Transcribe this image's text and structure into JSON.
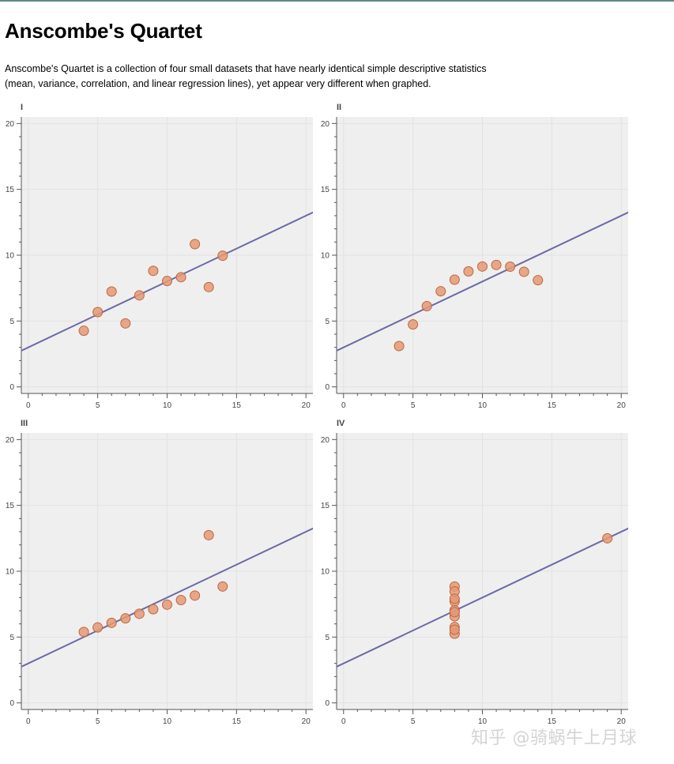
{
  "page": {
    "title": "Anscombe's Quartet",
    "description_line1": "Anscombe's Quartet is a collection of four small datasets that have nearly identical simple descriptive statistics",
    "description_line2": "(mean, variance, correlation, and linear regression lines), yet appear very different when graphed."
  },
  "colors": {
    "plot_background": "#efefef",
    "grid": "#e2e2e2",
    "point_fill": "#e39a76",
    "point_stroke": "#c2643d",
    "line": "#6a6aa6",
    "axis": "#555555"
  },
  "watermark": "知乎 @骑蜗牛上月球",
  "chart_data": [
    {
      "type": "scatter",
      "title": "I",
      "xlim": [
        -0.5,
        20.5
      ],
      "ylim": [
        -0.5,
        20.5
      ],
      "xticks": [
        0,
        5,
        10,
        15,
        20
      ],
      "yticks": [
        0,
        5,
        10,
        15,
        20
      ],
      "grid": true,
      "x": [
        10,
        8,
        13,
        9,
        11,
        14,
        6,
        4,
        12,
        7,
        5
      ],
      "y": [
        8.04,
        6.95,
        7.58,
        8.81,
        8.33,
        9.96,
        7.24,
        4.26,
        10.84,
        4.82,
        5.68
      ],
      "regression": {
        "intercept": 3,
        "slope": 0.5
      }
    },
    {
      "type": "scatter",
      "title": "II",
      "xlim": [
        -0.5,
        20.5
      ],
      "ylim": [
        -0.5,
        20.5
      ],
      "xticks": [
        0,
        5,
        10,
        15,
        20
      ],
      "yticks": [
        0,
        5,
        10,
        15,
        20
      ],
      "grid": true,
      "x": [
        10,
        8,
        13,
        9,
        11,
        14,
        6,
        4,
        12,
        7,
        5
      ],
      "y": [
        9.14,
        8.14,
        8.74,
        8.77,
        9.26,
        8.1,
        6.13,
        3.1,
        9.13,
        7.26,
        4.74
      ],
      "regression": {
        "intercept": 3,
        "slope": 0.5
      }
    },
    {
      "type": "scatter",
      "title": "III",
      "xlim": [
        -0.5,
        20.5
      ],
      "ylim": [
        -0.5,
        20.5
      ],
      "xticks": [
        0,
        5,
        10,
        15,
        20
      ],
      "yticks": [
        0,
        5,
        10,
        15,
        20
      ],
      "grid": true,
      "x": [
        10,
        8,
        13,
        9,
        11,
        14,
        6,
        4,
        12,
        7,
        5
      ],
      "y": [
        7.46,
        6.77,
        12.74,
        7.11,
        7.81,
        8.84,
        6.08,
        5.39,
        8.15,
        6.42,
        5.73
      ],
      "regression": {
        "intercept": 3,
        "slope": 0.5
      }
    },
    {
      "type": "scatter",
      "title": "IV",
      "xlim": [
        -0.5,
        20.5
      ],
      "ylim": [
        -0.5,
        20.5
      ],
      "xticks": [
        0,
        5,
        10,
        15,
        20
      ],
      "yticks": [
        0,
        5,
        10,
        15,
        20
      ],
      "grid": true,
      "x": [
        8,
        8,
        8,
        8,
        8,
        8,
        8,
        19,
        8,
        8,
        8
      ],
      "y": [
        6.58,
        5.76,
        7.71,
        8.84,
        8.47,
        7.04,
        5.25,
        12.5,
        5.56,
        7.91,
        6.89
      ],
      "regression": {
        "intercept": 3,
        "slope": 0.5
      }
    }
  ]
}
